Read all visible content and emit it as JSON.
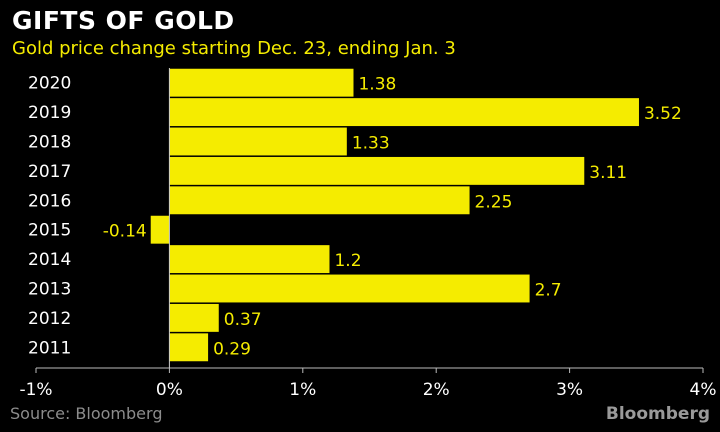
{
  "header": {
    "title": "GIFTS OF GOLD",
    "subtitle": "Gold price change starting Dec. 23, ending Jan. 3"
  },
  "footer": {
    "source": "Source: Bloomberg",
    "brand": "Bloomberg"
  },
  "colors": {
    "background": "#000000",
    "bar": "#f5ec00",
    "label": "#f5ec00",
    "axis_text": "#ffffff",
    "title": "#ffffff",
    "subtitle": "#f5ec00",
    "gridline": "#555555"
  },
  "chart_data": {
    "type": "bar",
    "orientation": "horizontal",
    "title": "GIFTS OF GOLD",
    "subtitle": "Gold price change starting Dec. 23, ending Jan. 3",
    "categories": [
      "2020",
      "2019",
      "2018",
      "2017",
      "2016",
      "2015",
      "2014",
      "2013",
      "2012",
      "2011"
    ],
    "values": [
      1.38,
      3.52,
      1.33,
      3.11,
      2.25,
      -0.14,
      1.2,
      2.7,
      0.37,
      0.29
    ],
    "data_labels": [
      "1.38",
      "3.52",
      "1.33",
      "3.11",
      "2.25",
      "-0.14",
      "1.2",
      "2.7",
      "0.37",
      "0.29"
    ],
    "xlim": [
      -1,
      4
    ],
    "xticks": [
      -1,
      0,
      1,
      2,
      3,
      4
    ],
    "xtick_labels": [
      "-1%",
      "0%",
      "1%",
      "2%",
      "3%",
      "4%"
    ],
    "xlabel": "",
    "ylabel": "",
    "grid": false,
    "legend": "none"
  }
}
